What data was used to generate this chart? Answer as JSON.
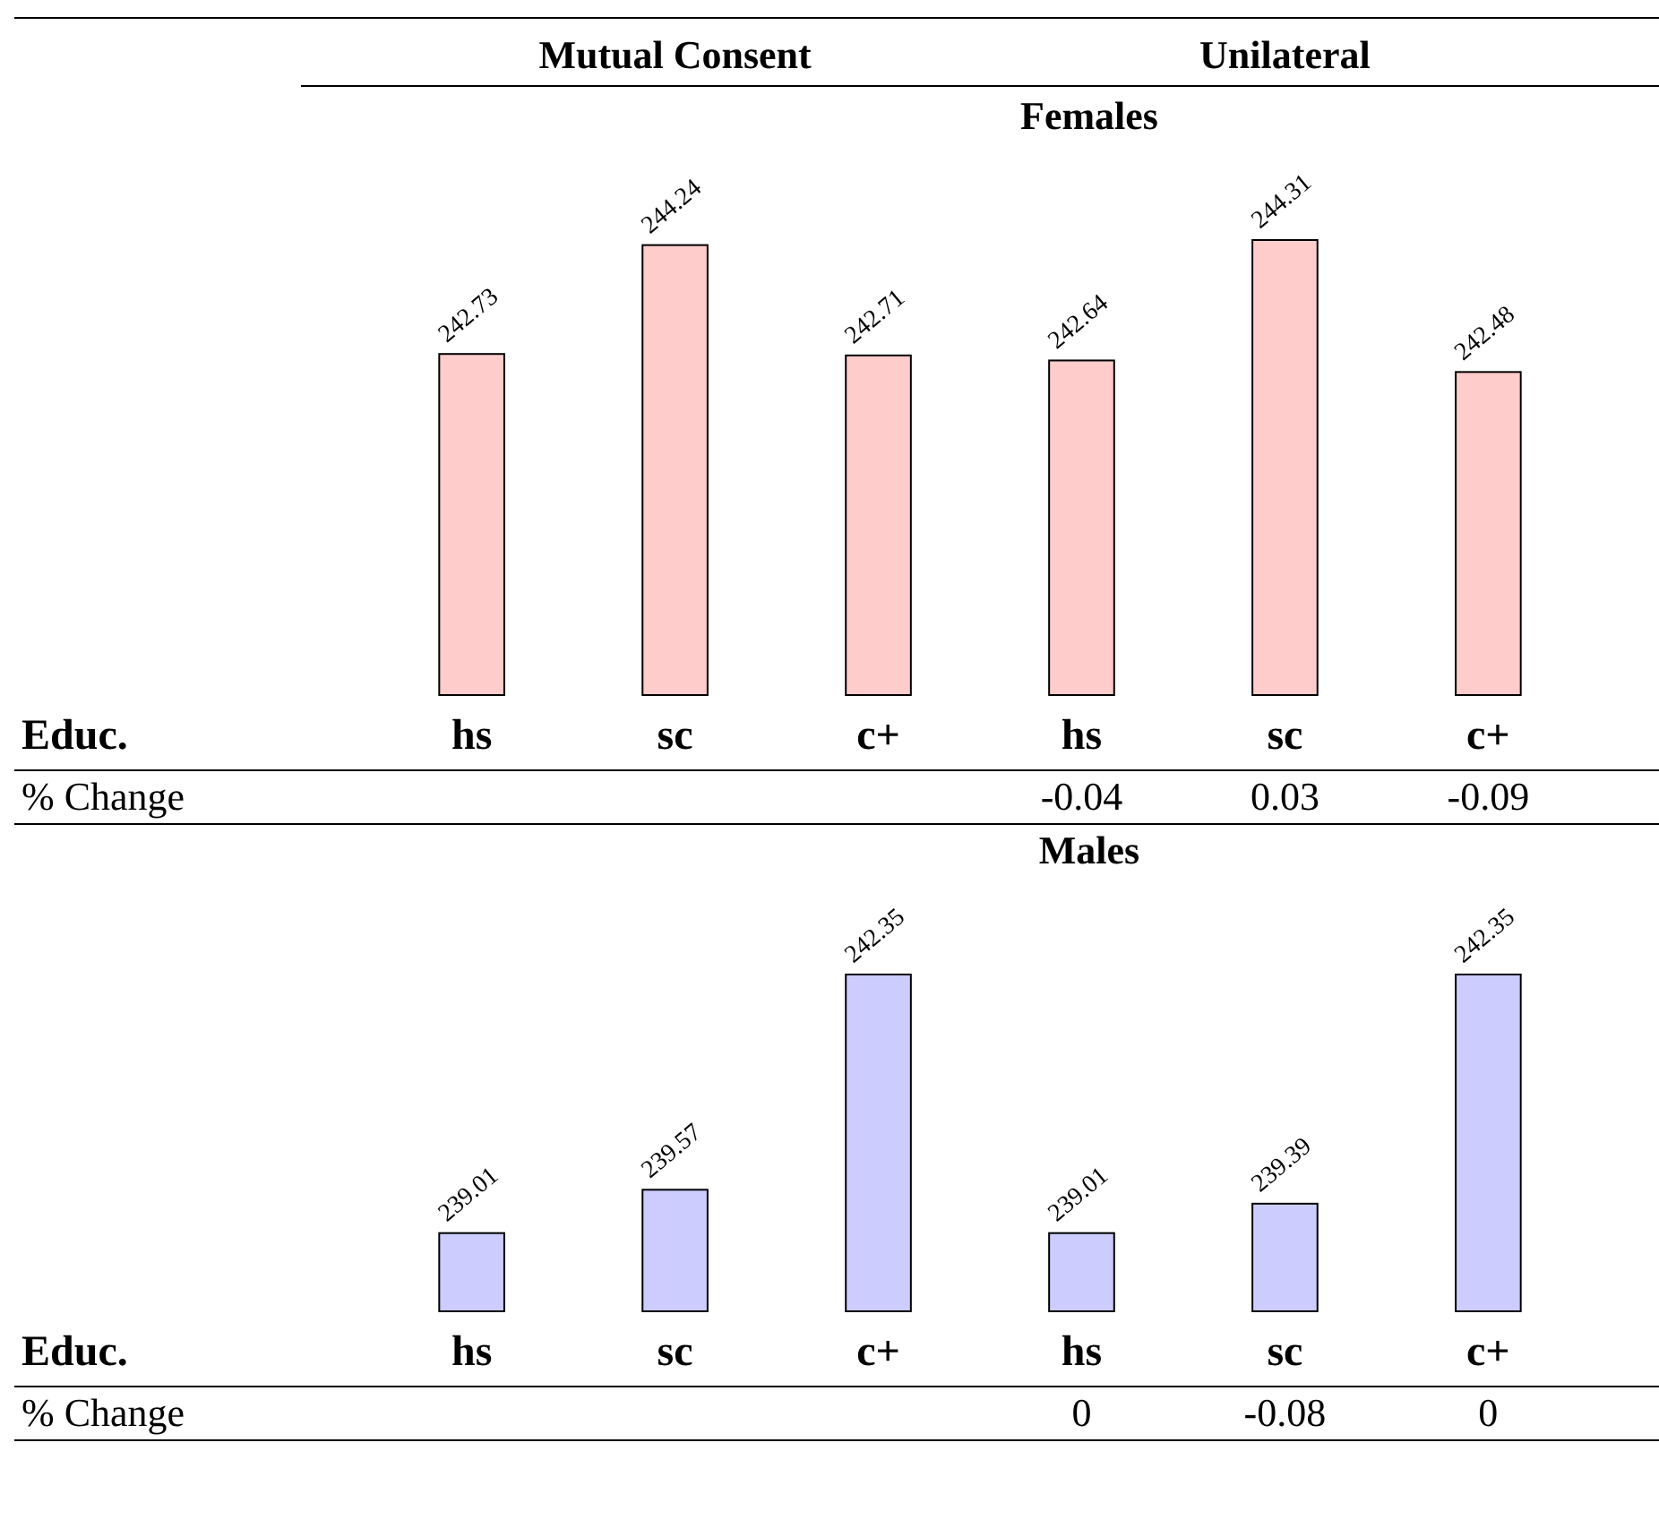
{
  "chart_data": [
    {
      "type": "bar",
      "title": "Females",
      "categories": [
        "hs",
        "sc",
        "c+",
        "hs",
        "sc",
        "c+"
      ],
      "values": [
        242.73,
        244.24,
        242.71,
        242.64,
        244.31,
        242.48
      ],
      "color": "#ffcccc",
      "ylim": [
        238,
        244.31
      ],
      "data_labels": true,
      "tick_labels": "x",
      "annotations": [
        "Mutual Consent",
        "Unilateral",
        "Educ.",
        "% Change",
        "-0.04",
        "0.03",
        "-0.09"
      ]
    },
    {
      "type": "bar",
      "title": "Males",
      "categories": [
        "hs",
        "sc",
        "c+",
        "hs",
        "sc",
        "c+"
      ],
      "values": [
        239.01,
        239.57,
        242.35,
        239.01,
        239.39,
        242.35
      ],
      "color": "#ccccff",
      "ylim": [
        238,
        242.35
      ],
      "data_labels": true,
      "tick_labels": "x",
      "annotations": [
        "Educ.",
        "% Change",
        "0",
        "-0.08",
        "0"
      ]
    }
  ]
}
